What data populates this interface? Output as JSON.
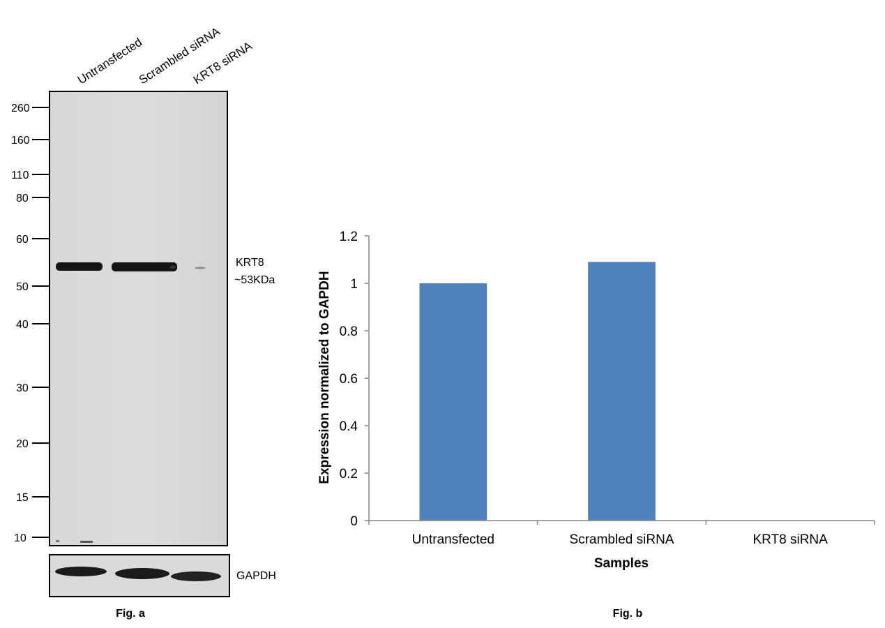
{
  "figure_a": {
    "caption": "Fig. a",
    "lanes": [
      "Untransfected",
      "Scrambled siRNA",
      "KRT8 siRNA"
    ],
    "markers": [
      "260",
      "160",
      "110",
      "80",
      "60",
      "50",
      "40",
      "30",
      "20",
      "15",
      "10"
    ],
    "band_label": "KRT8",
    "band_size": "~53KDa",
    "loading_control": "GAPDH",
    "band_intensity": [
      1.0,
      1.0,
      0.12
    ],
    "gapdh_intensity": [
      0.95,
      0.95,
      0.9
    ]
  },
  "chart_data": {
    "type": "bar",
    "caption": "Fig. b",
    "categories": [
      "Untransfected",
      "Scrambled siRNA",
      "KRT8 siRNA"
    ],
    "values": [
      1.0,
      1.09,
      0.0
    ],
    "xlabel": "Samples",
    "ylabel": "Expression normalized to GAPDH",
    "ylim": [
      0,
      1.2
    ],
    "yticks": [
      "0",
      "0.2",
      "0.4",
      "0.6",
      "0.8",
      "1",
      "1.2"
    ],
    "grid": false,
    "bar_color": "#4f81bd"
  }
}
